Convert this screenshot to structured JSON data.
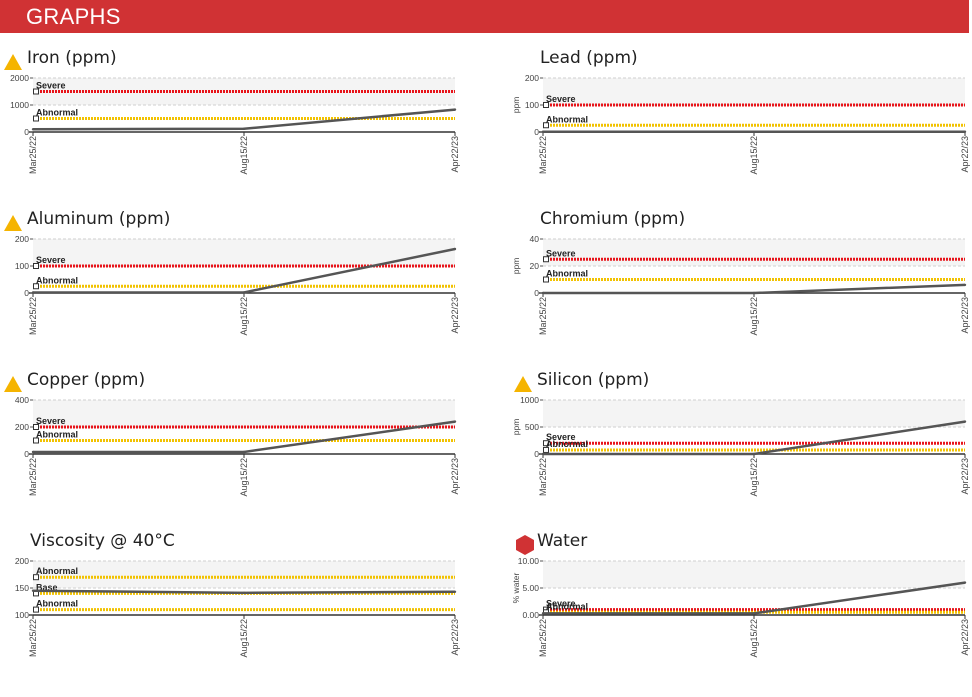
{
  "header": {
    "title": "GRAPHS"
  },
  "colors": {
    "header_bg": "#d03234",
    "severe": "#e8141a",
    "abnormal": "#f2c200",
    "base": "#f2c200",
    "series": "#555555",
    "warning_icon": "#f5b400",
    "critical_icon": "#d03234",
    "band": "#f4f4f4"
  },
  "chart_data": [
    {
      "type": "line",
      "title": "Iron (ppm)",
      "status_icon": "warning-triangle",
      "ylabel": "",
      "yticks": [
        "0",
        "1000",
        "2000"
      ],
      "ylim": [
        0,
        2000
      ],
      "x": [
        "Mar25/22",
        "Aug15/22",
        "Apr22/23"
      ],
      "series": [
        {
          "values": [
            100,
            120,
            830
          ]
        }
      ],
      "limits": [
        {
          "name": "Severe",
          "value": 1500,
          "color": "#e8141a"
        },
        {
          "name": "Abnormal",
          "value": 500,
          "color": "#f2c200"
        }
      ]
    },
    {
      "type": "line",
      "title": "Lead (ppm)",
      "status_icon": "",
      "ylabel": "ppm",
      "yticks": [
        "0",
        "100",
        "200"
      ],
      "ylim": [
        0,
        200
      ],
      "x": [
        "Mar25/22",
        "Aug15/22",
        "Apr22/23"
      ],
      "series": [
        {
          "values": [
            1,
            1,
            1
          ]
        }
      ],
      "limits": [
        {
          "name": "Severe",
          "value": 100,
          "color": "#e8141a"
        },
        {
          "name": "Abnormal",
          "value": 25,
          "color": "#f2c200"
        }
      ]
    },
    {
      "type": "line",
      "title": "Aluminum (ppm)",
      "status_icon": "warning-triangle",
      "ylabel": "",
      "yticks": [
        "0",
        "100",
        "200"
      ],
      "ylim": [
        0,
        200
      ],
      "x": [
        "Mar25/22",
        "Aug15/22",
        "Apr22/23"
      ],
      "series": [
        {
          "values": [
            2,
            2,
            163
          ]
        }
      ],
      "limits": [
        {
          "name": "Severe",
          "value": 100,
          "color": "#e8141a"
        },
        {
          "name": "Abnormal",
          "value": 25,
          "color": "#f2c200"
        }
      ]
    },
    {
      "type": "line",
      "title": "Chromium (ppm)",
      "status_icon": "",
      "ylabel": "ppm",
      "yticks": [
        "0",
        "20",
        "40"
      ],
      "ylim": [
        0,
        40
      ],
      "x": [
        "Mar25/22",
        "Aug15/22",
        "Apr22/23"
      ],
      "series": [
        {
          "values": [
            0,
            0,
            6
          ]
        }
      ],
      "limits": [
        {
          "name": "Severe",
          "value": 25,
          "color": "#e8141a"
        },
        {
          "name": "Abnormal",
          "value": 10,
          "color": "#f2c200"
        }
      ]
    },
    {
      "type": "line",
      "title": "Copper (ppm)",
      "status_icon": "warning-triangle",
      "ylabel": "",
      "yticks": [
        "0",
        "200",
        "400"
      ],
      "ylim": [
        0,
        400
      ],
      "x": [
        "Mar25/22",
        "Aug15/22",
        "Apr22/23"
      ],
      "series": [
        {
          "values": [
            15,
            15,
            240
          ]
        }
      ],
      "limits": [
        {
          "name": "Severe",
          "value": 200,
          "color": "#e8141a"
        },
        {
          "name": "Abnormal",
          "value": 100,
          "color": "#f2c200"
        }
      ]
    },
    {
      "type": "line",
      "title": "Silicon (ppm)",
      "status_icon": "warning-triangle",
      "ylabel": "ppm",
      "yticks": [
        "0",
        "500",
        "1000"
      ],
      "ylim": [
        0,
        1000
      ],
      "x": [
        "Mar25/22",
        "Aug15/22",
        "Apr22/23"
      ],
      "series": [
        {
          "values": [
            0,
            0,
            600
          ]
        }
      ],
      "limits": [
        {
          "name": "Severe",
          "value": 200,
          "color": "#e8141a"
        },
        {
          "name": "Abnormal",
          "value": 75,
          "color": "#f2c200"
        }
      ]
    },
    {
      "type": "line",
      "title": "Viscosity @ 40°C",
      "status_icon": "",
      "ylabel": "",
      "yticks": [
        "100",
        "150",
        "200"
      ],
      "ylim": [
        100,
        200
      ],
      "x": [
        "Mar25/22",
        "Aug15/22",
        "Apr22/23"
      ],
      "series": [
        {
          "values": [
            145,
            141,
            143
          ]
        }
      ],
      "limits": [
        {
          "name": "Abnormal",
          "value": 170,
          "color": "#f2c200"
        },
        {
          "name": "Base",
          "value": 140,
          "color": "#f2c200"
        },
        {
          "name": "Abnormal",
          "value": 110,
          "color": "#f2c200"
        }
      ]
    },
    {
      "type": "line",
      "title": "Water",
      "status_icon": "critical-hexagon",
      "ylabel": "% water",
      "yticks": [
        "0.00",
        "5.00",
        "10.00"
      ],
      "ylim": [
        0,
        10
      ],
      "x": [
        "Mar25/22",
        "Aug15/22",
        "Apr22/23"
      ],
      "series": [
        {
          "values": [
            0.3,
            0.3,
            6.0
          ]
        }
      ],
      "limits": [
        {
          "name": "Severe",
          "value": 1.0,
          "color": "#e8141a"
        },
        {
          "name": "Abnormal",
          "value": 0.5,
          "color": "#f2c200"
        }
      ]
    }
  ]
}
